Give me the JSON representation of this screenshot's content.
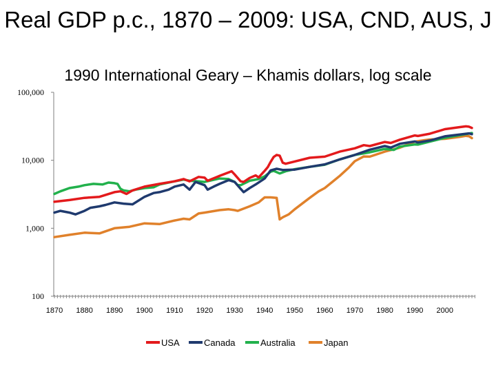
{
  "chart_data": {
    "type": "line",
    "title": "Real GDP p.c., 1870 – 2009: USA, CND, AUS, J",
    "subtitle": "1990 International Geary – Khamis dollars, log scale",
    "xlabel": "",
    "ylabel": "",
    "yscale": "log",
    "ylim": [
      100,
      100000
    ],
    "xlim": [
      1870,
      2010
    ],
    "y_tick_values": [
      100,
      1000,
      10000,
      100000
    ],
    "y_tick_labels": [
      "100",
      "1,000",
      "10,000",
      "100,000"
    ],
    "x_tick_values": [
      1870,
      1880,
      1890,
      1900,
      1910,
      1920,
      1930,
      1940,
      1950,
      1960,
      1970,
      1980,
      1990,
      2000
    ],
    "x_tick_labels": [
      "1870",
      "1880",
      "1890",
      "1900",
      "1910",
      "1920",
      "1930",
      "1940",
      "1950",
      "1960",
      "1970",
      "1980",
      "1990",
      "2000"
    ],
    "legend_position": "bottom",
    "series": [
      {
        "name": "USA",
        "color": "#e31a1c",
        "x": [
          1870,
          1875,
          1880,
          1885,
          1890,
          1892,
          1894,
          1896,
          1900,
          1905,
          1910,
          1913,
          1915,
          1918,
          1920,
          1921,
          1925,
          1929,
          1930,
          1932,
          1933,
          1935,
          1937,
          1938,
          1940,
          1941,
          1942,
          1943,
          1944,
          1945,
          1946,
          1947,
          1950,
          1955,
          1960,
          1965,
          1970,
          1973,
          1975,
          1980,
          1982,
          1985,
          1990,
          1991,
          1995,
          2000,
          2005,
          2007,
          2008,
          2009
        ],
        "y": [
          2450,
          2600,
          2800,
          2900,
          3400,
          3500,
          3200,
          3600,
          4100,
          4500,
          4900,
          5300,
          4900,
          5700,
          5550,
          5000,
          5900,
          6900,
          6200,
          4900,
          4800,
          5500,
          6000,
          5600,
          7000,
          7900,
          9500,
          11200,
          12000,
          11700,
          9200,
          8900,
          9600,
          10900,
          11300,
          13400,
          15000,
          16700,
          16200,
          18600,
          18000,
          20100,
          23200,
          22800,
          24600,
          28700,
          30800,
          31600,
          31200,
          29900
        ]
      },
      {
        "name": "Canada",
        "color": "#1f3a6e",
        "x": [
          1870,
          1872,
          1875,
          1877,
          1880,
          1882,
          1885,
          1887,
          1890,
          1893,
          1896,
          1900,
          1903,
          1905,
          1908,
          1910,
          1913,
          1915,
          1917,
          1920,
          1921,
          1923,
          1925,
          1928,
          1930,
          1932,
          1933,
          1935,
          1937,
          1940,
          1941,
          1942,
          1944,
          1946,
          1950,
          1955,
          1960,
          1965,
          1970,
          1975,
          1980,
          1982,
          1985,
          1990,
          1991,
          1995,
          2000,
          2005,
          2008,
          2009
        ],
        "y": [
          1700,
          1800,
          1700,
          1600,
          1800,
          2000,
          2100,
          2200,
          2400,
          2300,
          2250,
          2900,
          3300,
          3400,
          3700,
          4100,
          4400,
          3700,
          4800,
          4300,
          3700,
          4100,
          4500,
          5100,
          4800,
          3800,
          3400,
          3900,
          4400,
          5400,
          6200,
          7100,
          7500,
          7200,
          7300,
          8000,
          8700,
          10300,
          12000,
          14300,
          16200,
          15400,
          17500,
          18900,
          18300,
          19500,
          22500,
          24000,
          24900,
          24200
        ]
      },
      {
        "name": "Australia",
        "color": "#22b14c",
        "x": [
          1870,
          1872,
          1875,
          1878,
          1880,
          1883,
          1886,
          1888,
          1890,
          1891,
          1892,
          1893,
          1895,
          1897,
          1900,
          1903,
          1905,
          1910,
          1913,
          1915,
          1918,
          1920,
          1925,
          1928,
          1930,
          1931,
          1932,
          1935,
          1938,
          1940,
          1942,
          1943,
          1945,
          1947,
          1950,
          1955,
          1960,
          1965,
          1970,
          1975,
          1980,
          1983,
          1985,
          1990,
          1991,
          1995,
          2000,
          2005,
          2009
        ],
        "y": [
          3200,
          3500,
          3900,
          4100,
          4300,
          4500,
          4400,
          4700,
          4600,
          4500,
          3800,
          3600,
          3500,
          3700,
          3900,
          4000,
          4400,
          4900,
          5200,
          5000,
          4900,
          4800,
          5400,
          5300,
          4800,
          4300,
          4300,
          5000,
          5300,
          5800,
          6800,
          7000,
          6400,
          6900,
          7400,
          8000,
          8600,
          10300,
          12000,
          13100,
          14700,
          14200,
          15900,
          17100,
          17000,
          18800,
          21400,
          23500,
          25200
        ]
      },
      {
        "name": "Japan",
        "color": "#e0812b",
        "x": [
          1870,
          1875,
          1880,
          1885,
          1890,
          1895,
          1900,
          1905,
          1910,
          1913,
          1915,
          1918,
          1920,
          1925,
          1928,
          1930,
          1931,
          1935,
          1938,
          1940,
          1942,
          1944,
          1945,
          1946,
          1948,
          1950,
          1953,
          1955,
          1958,
          1960,
          1963,
          1965,
          1968,
          1970,
          1973,
          1975,
          1980,
          1985,
          1990,
          1993,
          1995,
          2000,
          2005,
          2007,
          2008,
          2009
        ],
        "y": [
          740,
          800,
          860,
          840,
          1000,
          1050,
          1180,
          1150,
          1300,
          1380,
          1350,
          1650,
          1700,
          1850,
          1900,
          1850,
          1800,
          2100,
          2400,
          2850,
          2850,
          2800,
          1350,
          1450,
          1600,
          1900,
          2400,
          2800,
          3500,
          3900,
          5000,
          5900,
          7800,
          9700,
          11400,
          11300,
          13400,
          15300,
          18800,
          19700,
          20200,
          20700,
          22100,
          22900,
          22600,
          21200
        ]
      }
    ]
  }
}
